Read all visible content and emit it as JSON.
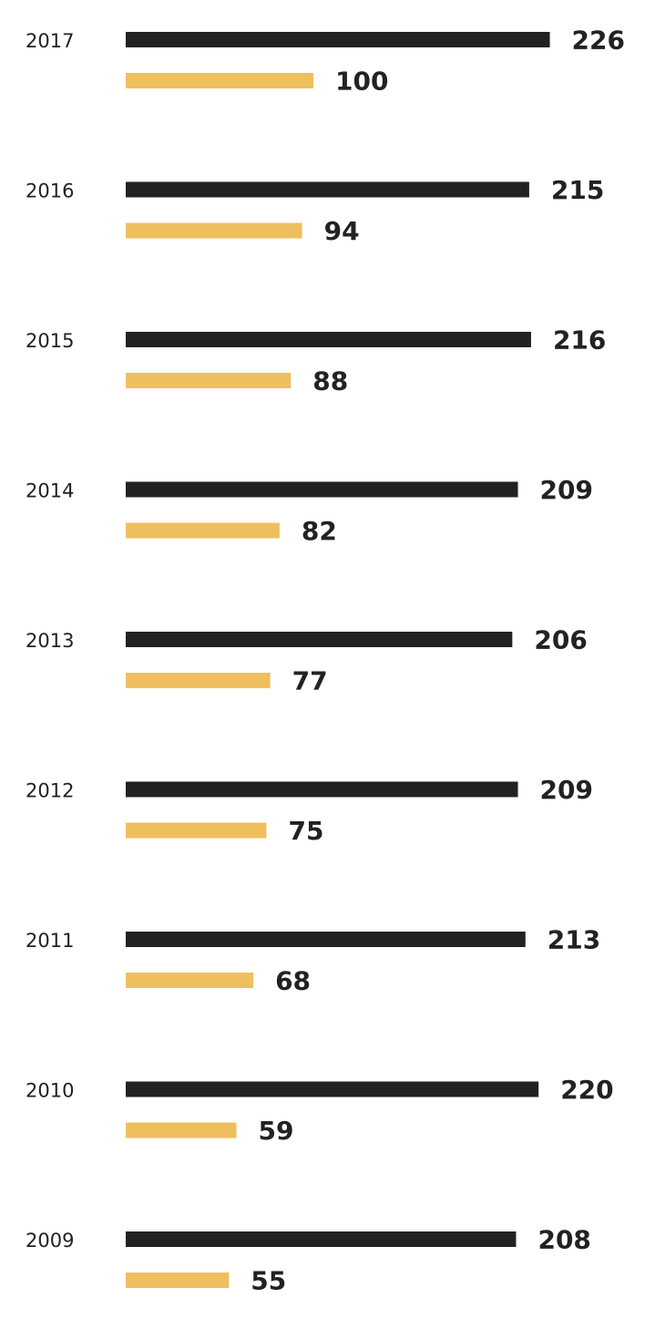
{
  "chart_data": {
    "type": "bar",
    "orientation": "horizontal",
    "categories": [
      "2017",
      "2016",
      "2015",
      "2014",
      "2013",
      "2012",
      "2011",
      "2010",
      "2009"
    ],
    "series": [
      {
        "values": [
          226,
          215,
          216,
          209,
          206,
          209,
          213,
          220,
          208
        ],
        "color": "#222222"
      },
      {
        "values": [
          100,
          94,
          88,
          82,
          77,
          75,
          68,
          59,
          55
        ],
        "color": "#EFBF5F"
      }
    ],
    "title": "",
    "xlabel": "",
    "ylabel": "",
    "data_labels": true,
    "grid": false,
    "legend": "none"
  }
}
